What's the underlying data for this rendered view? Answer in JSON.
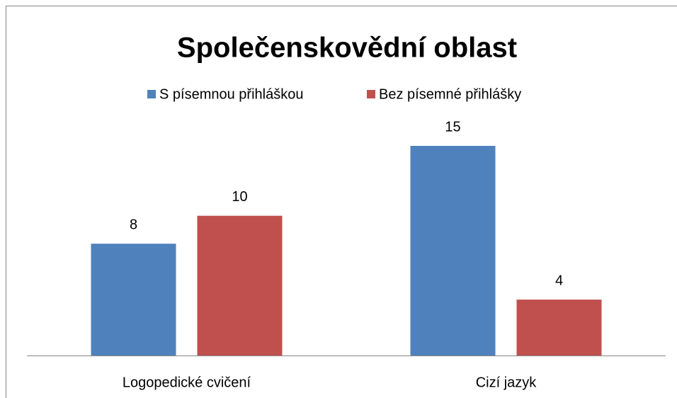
{
  "chart_data": {
    "type": "bar",
    "title": "Společenskovědní oblast",
    "categories": [
      "Logopedické cvičení",
      "Cizí jazyk"
    ],
    "series": [
      {
        "name": "S písemnou přihláškou",
        "color": "#4f81bd",
        "values": [
          8,
          15
        ]
      },
      {
        "name": "Bez písemné přihlášky",
        "color": "#c0504d",
        "values": [
          10,
          4
        ]
      }
    ],
    "legend": "top"
  }
}
